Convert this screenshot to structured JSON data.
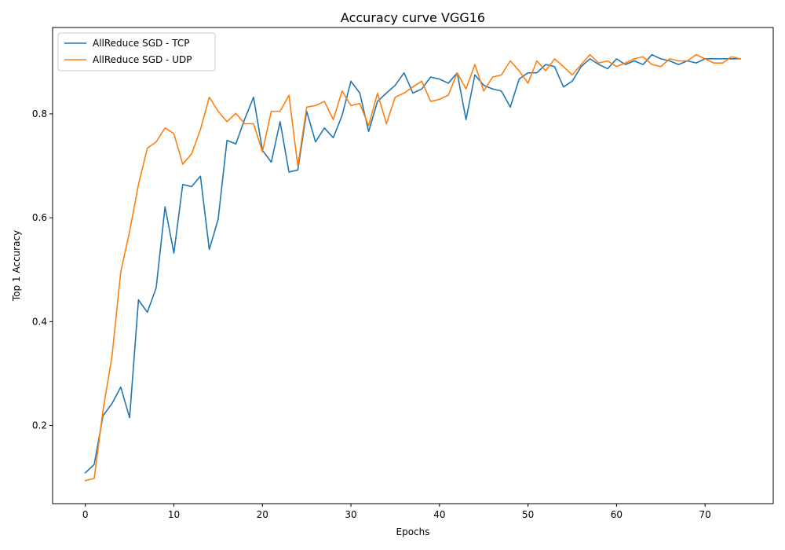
{
  "chart_data": {
    "type": "line",
    "title": "Accuracy curve VGG16",
    "xlabel": "Epochs",
    "ylabel": "Top 1 Accuracy",
    "xlim": [
      -3.7,
      77.7
    ],
    "ylim": [
      0.0496,
      0.9663
    ],
    "xticks": [
      0,
      10,
      20,
      30,
      40,
      50,
      60,
      70
    ],
    "yticks": [
      0.2,
      0.4,
      0.6,
      0.8
    ],
    "ytick_labels": [
      "0.2",
      "0.4",
      "0.6",
      "0.8"
    ],
    "grid": false,
    "legend_position": "upper left",
    "x": [
      0,
      1,
      2,
      3,
      4,
      5,
      6,
      7,
      8,
      9,
      10,
      11,
      12,
      13,
      14,
      15,
      16,
      17,
      18,
      19,
      20,
      21,
      22,
      23,
      24,
      25,
      26,
      27,
      28,
      29,
      30,
      31,
      32,
      33,
      34,
      35,
      36,
      37,
      38,
      39,
      40,
      41,
      42,
      43,
      44,
      45,
      46,
      47,
      48,
      49,
      50,
      51,
      52,
      53,
      54,
      55,
      56,
      57,
      58,
      59,
      60,
      61,
      62,
      63,
      64,
      65,
      66,
      67,
      68,
      69,
      70,
      71,
      72,
      73,
      74
    ],
    "series": [
      {
        "name": "AllReduce SGD - TCP",
        "color": "#1f77b4",
        "values": [
          0.109,
          0.125,
          0.219,
          0.242,
          0.274,
          0.215,
          0.442,
          0.418,
          0.465,
          0.621,
          0.532,
          0.664,
          0.66,
          0.68,
          0.539,
          0.597,
          0.749,
          0.742,
          0.79,
          0.832,
          0.73,
          0.707,
          0.785,
          0.688,
          0.692,
          0.805,
          0.746,
          0.773,
          0.754,
          0.797,
          0.863,
          0.84,
          0.766,
          0.824,
          0.84,
          0.855,
          0.879,
          0.84,
          0.848,
          0.871,
          0.867,
          0.859,
          0.879,
          0.789,
          0.875,
          0.855,
          0.848,
          0.844,
          0.813,
          0.867,
          0.879,
          0.879,
          0.895,
          0.891,
          0.852,
          0.863,
          0.891,
          0.906,
          0.895,
          0.887,
          0.906,
          0.895,
          0.902,
          0.895,
          0.914,
          0.906,
          0.902,
          0.895,
          0.902,
          0.898,
          0.906,
          0.906,
          0.906,
          0.906,
          0.906
        ]
      },
      {
        "name": "AllReduce SGD - UDP",
        "color": "#ff7f0e",
        "values": [
          0.094,
          0.098,
          0.23,
          0.332,
          0.496,
          0.574,
          0.664,
          0.734,
          0.746,
          0.773,
          0.762,
          0.703,
          0.723,
          0.77,
          0.832,
          0.805,
          0.785,
          0.801,
          0.781,
          0.781,
          0.727,
          0.805,
          0.805,
          0.836,
          0.699,
          0.813,
          0.816,
          0.824,
          0.789,
          0.844,
          0.816,
          0.82,
          0.777,
          0.84,
          0.781,
          0.832,
          0.84,
          0.852,
          0.863,
          0.824,
          0.828,
          0.836,
          0.879,
          0.848,
          0.895,
          0.844,
          0.871,
          0.875,
          0.902,
          0.883,
          0.859,
          0.902,
          0.883,
          0.906,
          0.891,
          0.875,
          0.895,
          0.914,
          0.898,
          0.902,
          0.891,
          0.898,
          0.906,
          0.91,
          0.895,
          0.891,
          0.906,
          0.902,
          0.902,
          0.914,
          0.906,
          0.898,
          0.898,
          0.91,
          0.906
        ]
      }
    ]
  }
}
